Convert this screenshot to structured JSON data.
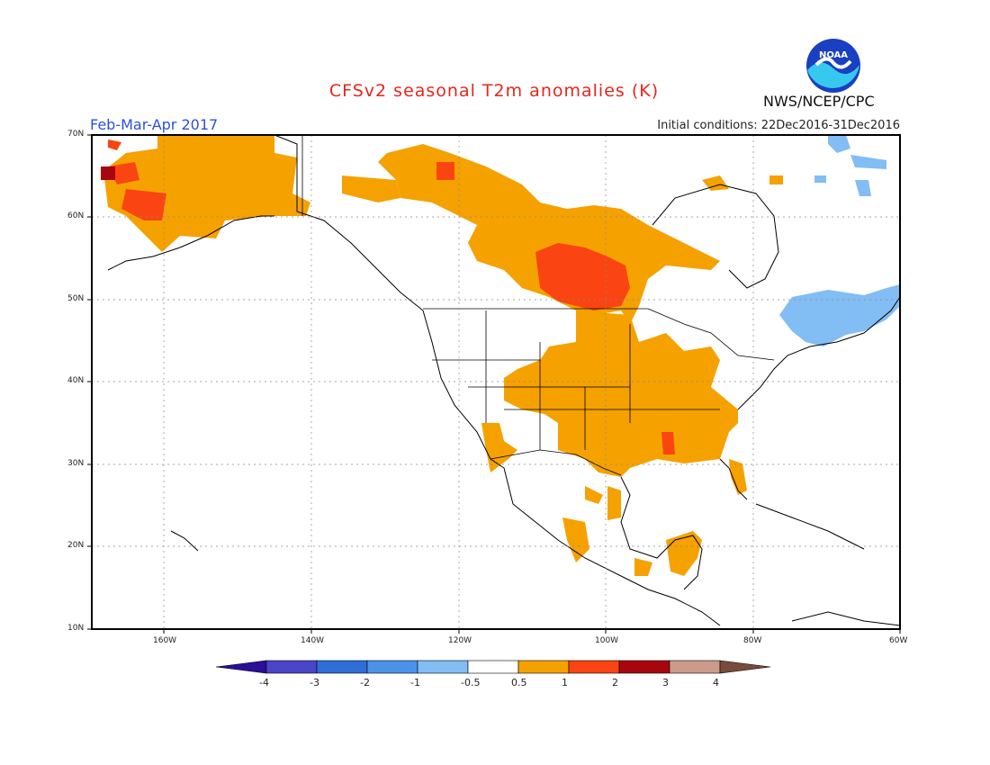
{
  "title": "CFSv2 seasonal T2m anomalies (K)",
  "period": "Feb-Mar-Apr 2017",
  "initial_conditions": "Initial conditions: 22Dec2016-31Dec2016",
  "agency": "NWS/NCEP/CPC",
  "logo_text": "NOAA",
  "lat_labels": [
    "70N",
    "60N",
    "50N",
    "40N",
    "30N",
    "20N",
    "10N"
  ],
  "lon_labels": [
    "160W",
    "140W",
    "120W",
    "100W",
    "80W",
    "60W"
  ],
  "colorbar": {
    "labels": [
      "-4",
      "-3",
      "-2",
      "-1",
      "-0.5",
      "0.5",
      "1",
      "2",
      "3",
      "4"
    ],
    "colors": [
      "#2a0f98",
      "#4b45c8",
      "#2e6fd6",
      "#4b93ea",
      "#82bdf4",
      "#ffffff",
      "#f5a100",
      "#fa4512",
      "#a8060e",
      "#cc9b8c",
      "#7a4a3c"
    ]
  }
}
